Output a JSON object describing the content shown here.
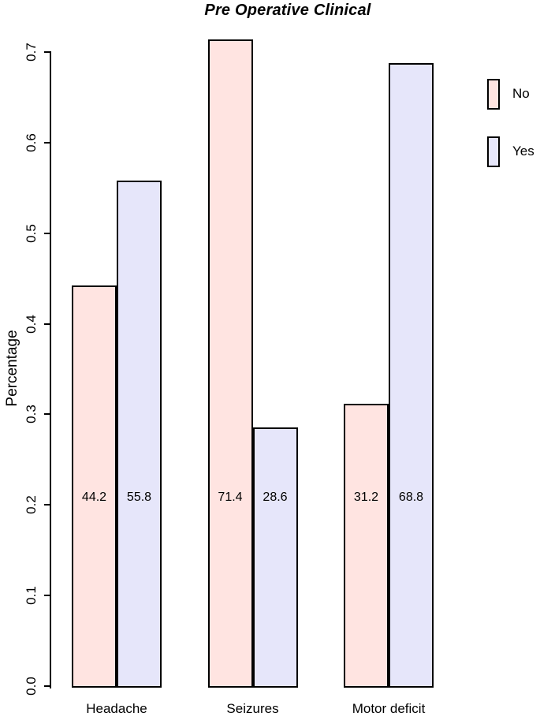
{
  "figure": {
    "background_color": "#FFFFFF",
    "axis_color": "#000000",
    "text_color": "#000000"
  },
  "chart_data": {
    "type": "bar",
    "title": "Pre Operative Clinical",
    "xlabel": "",
    "ylabel": "Percentage",
    "categories": [
      "Headache",
      "Seizures",
      "Motor deficit"
    ],
    "series": [
      {
        "name": "No",
        "color": "#FFE4E1",
        "values": [
          0.442,
          0.714,
          0.312
        ],
        "bar_labels": [
          "44.2",
          "71.4",
          "31.2"
        ]
      },
      {
        "name": "Yes",
        "color": "#E6E6FA",
        "values": [
          0.558,
          0.286,
          0.688
        ],
        "bar_labels": [
          "55.8",
          "28.6",
          "68.8"
        ]
      }
    ],
    "ylim": [
      0.0,
      0.7
    ],
    "yticks": [
      0.0,
      0.1,
      0.2,
      0.3,
      0.4,
      0.5,
      0.6,
      0.7
    ],
    "ytick_labels": [
      "0.0",
      "0.1",
      "0.2",
      "0.3",
      "0.4",
      "0.5",
      "0.6",
      "0.7"
    ],
    "grid": false,
    "legend_position": "right",
    "bar_border_color": "#000000"
  }
}
